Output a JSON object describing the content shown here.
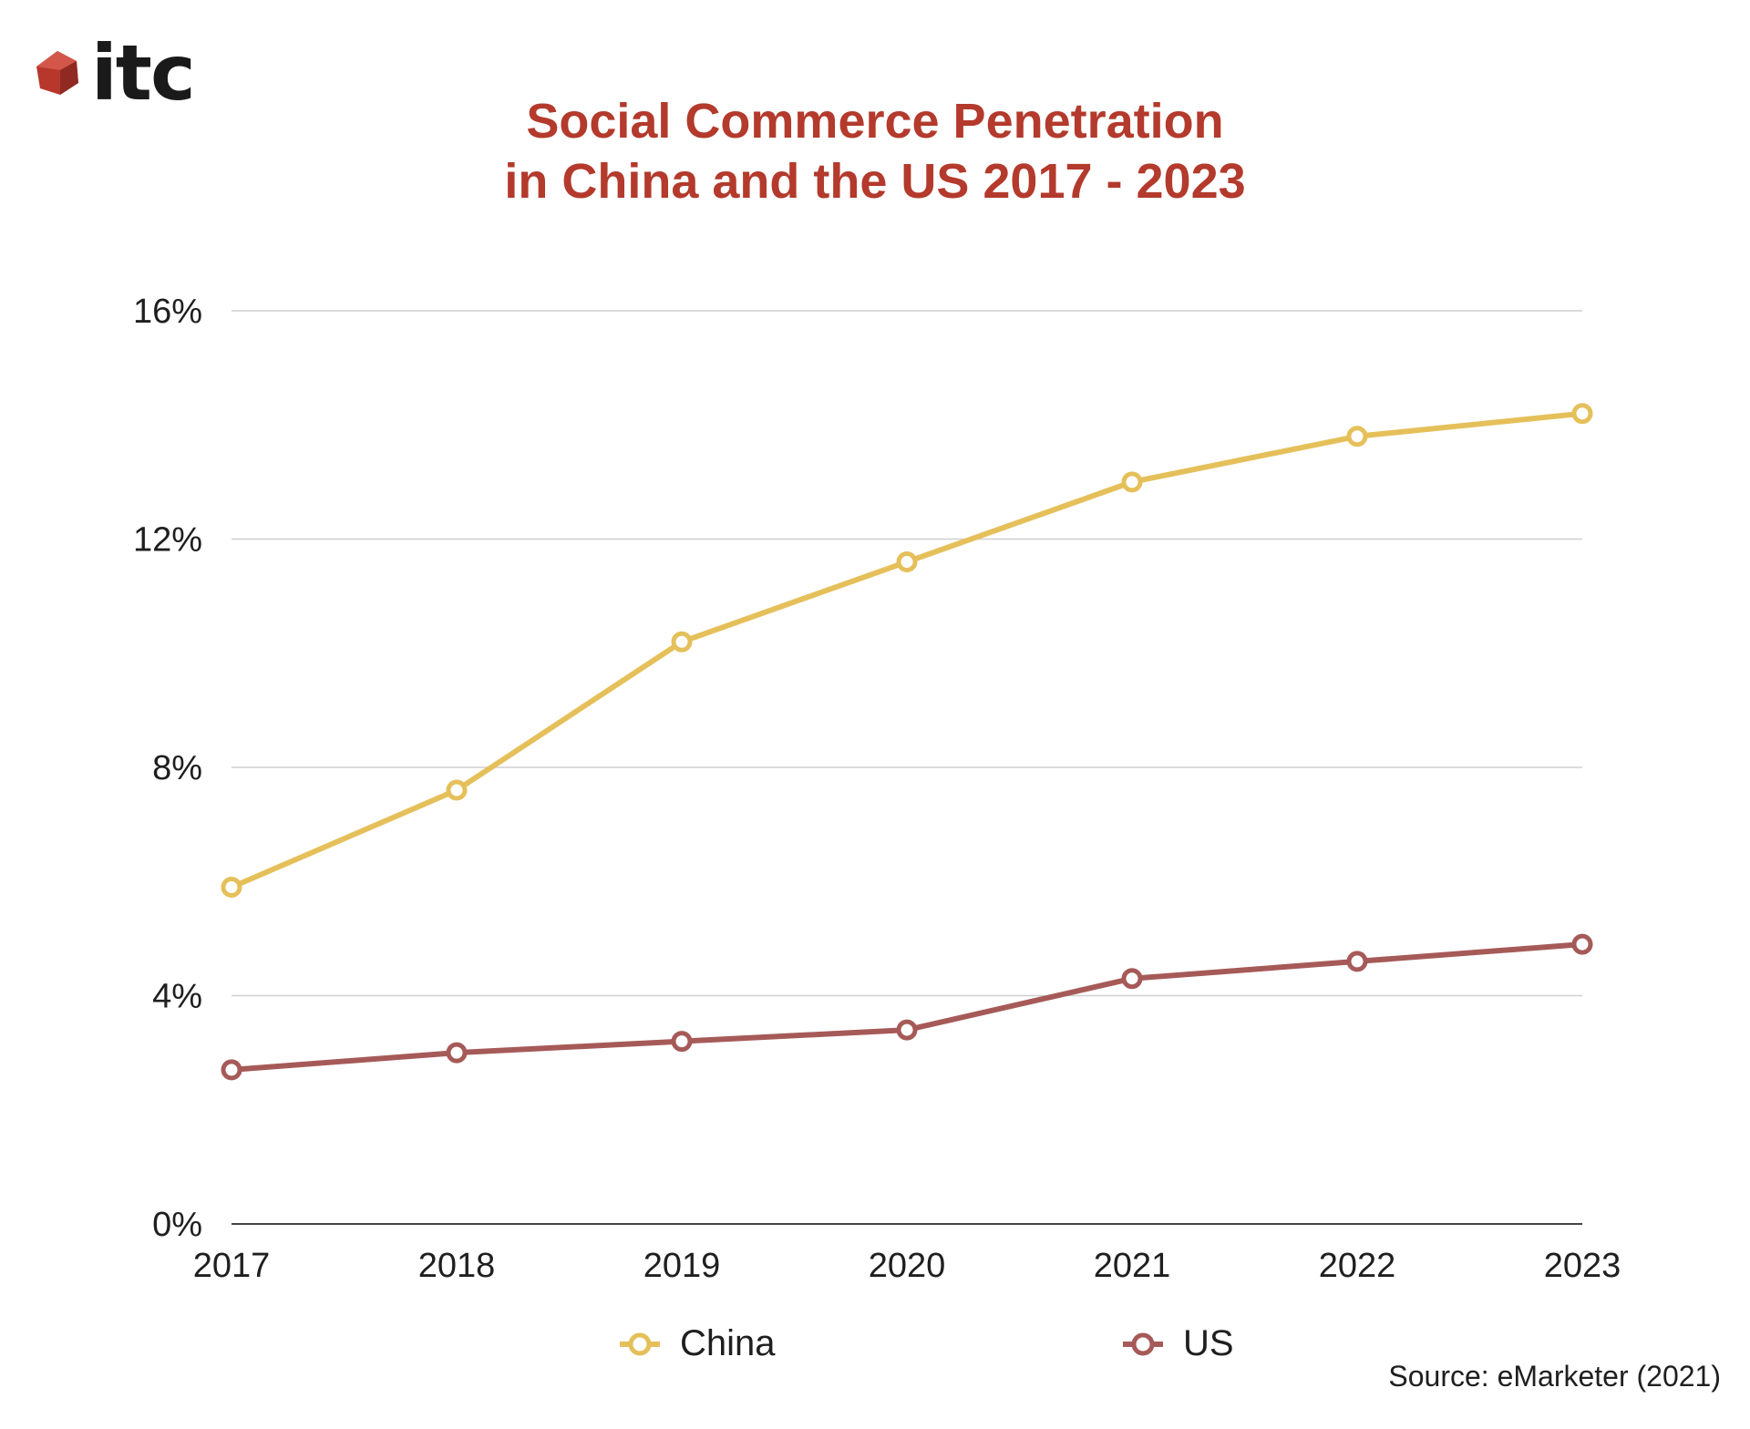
{
  "logo": {
    "text": "itc"
  },
  "title": {
    "line1": "Social Commerce Penetration",
    "line2": "in China and the US 2017 - 2023"
  },
  "source": "Source: eMarketer (2021)",
  "colors": {
    "china": "#e5c05a",
    "us": "#a65a58",
    "title": "#b33a2c",
    "grid": "#cfcfcf",
    "axis": "#444444"
  },
  "chart_data": {
    "type": "line",
    "title": "Social Commerce Penetration in China and the US 2017 - 2023",
    "xlabel": "",
    "ylabel": "",
    "categories": [
      "2017",
      "2018",
      "2019",
      "2020",
      "2021",
      "2022",
      "2023"
    ],
    "y_ticks": [
      0,
      4,
      8,
      12,
      16
    ],
    "y_tick_labels": [
      "0%",
      "4%",
      "8%",
      "12%",
      "16%"
    ],
    "ylim": [
      0,
      16
    ],
    "grid": true,
    "legend_position": "bottom",
    "series": [
      {
        "name": "China",
        "color": "#e5c05a",
        "values": [
          5.9,
          7.6,
          10.2,
          11.6,
          13.0,
          13.8,
          14.2
        ]
      },
      {
        "name": "US",
        "color": "#a65a58",
        "values": [
          2.7,
          3.0,
          3.2,
          3.4,
          4.3,
          4.6,
          4.9
        ]
      }
    ]
  }
}
